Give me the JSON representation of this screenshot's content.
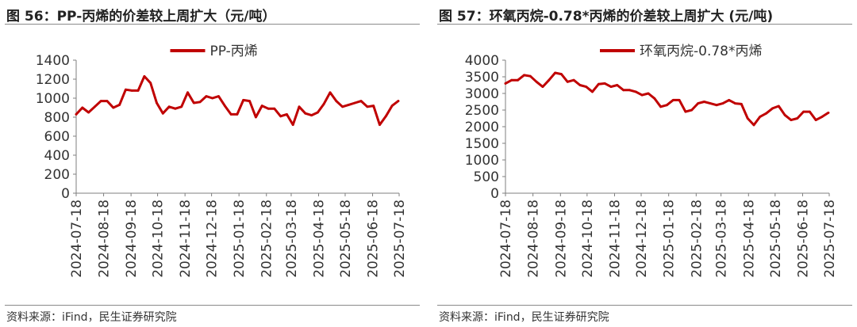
{
  "figures": [
    {
      "title": "图 56：PP-丙烯的价差较上周扩大（元/吨）",
      "source": "资料来源：iFind，民生证券研究院"
    },
    {
      "title": "图 57：环氧丙烷-0.78*丙烯的价差较上周扩大 (元/吨)",
      "source": "资料来源：iFind，民生证券研究院"
    }
  ],
  "chart_data": [
    {
      "type": "line",
      "title": "",
      "xlabel": "",
      "ylabel": "",
      "ylim": [
        0,
        1400
      ],
      "yticks": [
        0,
        200,
        400,
        600,
        800,
        1000,
        1200,
        1400
      ],
      "xticks": [
        "2024-07-18",
        "2024-08-18",
        "2024-09-18",
        "2024-10-18",
        "2024-11-18",
        "2024-12-18",
        "2025-01-18",
        "2025-02-18",
        "2025-03-18",
        "2025-04-18",
        "2025-05-18",
        "2025-06-18",
        "2025-07-18"
      ],
      "grid": false,
      "legend": "top-center",
      "color": "#c00000",
      "series": [
        {
          "name": "PP-丙烯",
          "x": [
            "2024-07-18",
            "2024-07-25",
            "2024-08-01",
            "2024-08-08",
            "2024-08-15",
            "2024-08-22",
            "2024-08-29",
            "2024-09-05",
            "2024-09-12",
            "2024-09-19",
            "2024-09-26",
            "2024-10-03",
            "2024-10-10",
            "2024-10-17",
            "2024-10-24",
            "2024-10-31",
            "2024-11-07",
            "2024-11-14",
            "2024-11-21",
            "2024-11-28",
            "2024-12-05",
            "2024-12-12",
            "2024-12-19",
            "2024-12-26",
            "2025-01-02",
            "2025-01-09",
            "2025-01-16",
            "2025-01-23",
            "2025-01-30",
            "2025-02-06",
            "2025-02-13",
            "2025-02-20",
            "2025-02-27",
            "2025-03-06",
            "2025-03-13",
            "2025-03-20",
            "2025-03-27",
            "2025-04-03",
            "2025-04-10",
            "2025-04-17",
            "2025-04-24",
            "2025-05-01",
            "2025-05-08",
            "2025-05-15",
            "2025-05-22",
            "2025-05-29",
            "2025-06-05",
            "2025-06-12",
            "2025-06-19",
            "2025-06-26",
            "2025-07-03",
            "2025-07-10",
            "2025-07-17"
          ],
          "values": [
            830,
            900,
            850,
            910,
            970,
            970,
            900,
            930,
            1090,
            1080,
            1080,
            1230,
            1160,
            950,
            840,
            910,
            890,
            910,
            1060,
            950,
            960,
            1020,
            1000,
            1020,
            920,
            830,
            830,
            980,
            970,
            800,
            920,
            890,
            890,
            810,
            830,
            720,
            910,
            840,
            820,
            850,
            940,
            1060,
            970,
            910,
            930,
            950,
            970,
            910,
            920,
            720,
            810,
            920,
            970
          ]
        }
      ]
    },
    {
      "type": "line",
      "title": "",
      "xlabel": "",
      "ylabel": "",
      "ylim": [
        0,
        4000
      ],
      "yticks": [
        0,
        500,
        1000,
        1500,
        2000,
        2500,
        3000,
        3500,
        4000
      ],
      "xticks": [
        "2024-07-18",
        "2024-08-18",
        "2024-09-18",
        "2024-10-18",
        "2024-11-18",
        "2024-12-18",
        "2025-01-18",
        "2025-02-18",
        "2025-03-18",
        "2025-04-18",
        "2025-05-18",
        "2025-06-18",
        "2025-07-18"
      ],
      "grid": false,
      "legend": "top-center",
      "color": "#c00000",
      "series": [
        {
          "name": "环氧丙烷-0.78*丙烯",
          "x": [
            "2024-07-18",
            "2024-07-25",
            "2024-08-01",
            "2024-08-08",
            "2024-08-15",
            "2024-08-22",
            "2024-08-29",
            "2024-09-05",
            "2024-09-12",
            "2024-09-19",
            "2024-09-26",
            "2024-10-03",
            "2024-10-10",
            "2024-10-17",
            "2024-10-24",
            "2024-10-31",
            "2024-11-07",
            "2024-11-14",
            "2024-11-21",
            "2024-11-28",
            "2024-12-05",
            "2024-12-12",
            "2024-12-19",
            "2024-12-26",
            "2025-01-02",
            "2025-01-09",
            "2025-01-16",
            "2025-01-23",
            "2025-01-30",
            "2025-02-06",
            "2025-02-13",
            "2025-02-20",
            "2025-02-27",
            "2025-03-06",
            "2025-03-13",
            "2025-03-20",
            "2025-03-27",
            "2025-04-03",
            "2025-04-10",
            "2025-04-17",
            "2025-04-24",
            "2025-05-01",
            "2025-05-08",
            "2025-05-15",
            "2025-05-22",
            "2025-05-29",
            "2025-06-05",
            "2025-06-12",
            "2025-06-19",
            "2025-06-26",
            "2025-07-03",
            "2025-07-10",
            "2025-07-17"
          ],
          "values": [
            3300,
            3400,
            3400,
            3550,
            3520,
            3350,
            3200,
            3400,
            3620,
            3580,
            3350,
            3400,
            3250,
            3200,
            3050,
            3280,
            3300,
            3200,
            3250,
            3100,
            3100,
            3050,
            2950,
            3000,
            2850,
            2600,
            2650,
            2800,
            2800,
            2450,
            2500,
            2700,
            2750,
            2700,
            2650,
            2700,
            2800,
            2700,
            2680,
            2250,
            2050,
            2300,
            2400,
            2550,
            2620,
            2350,
            2200,
            2250,
            2450,
            2450,
            2200,
            2300,
            2420
          ]
        }
      ]
    }
  ]
}
